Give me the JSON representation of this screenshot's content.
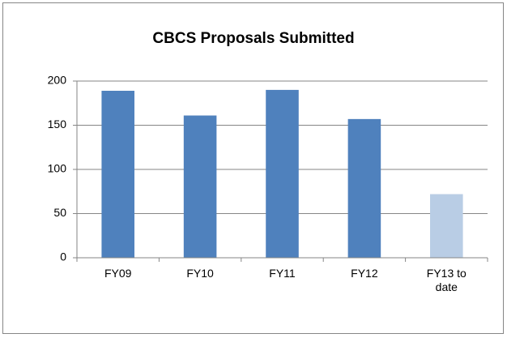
{
  "chart_data": {
    "type": "bar",
    "title": "CBCS Proposals Submitted",
    "categories": [
      "FY09",
      "FY10",
      "FY11",
      "FY12",
      "FY13 to date"
    ],
    "values": [
      189,
      161,
      190,
      157,
      72
    ],
    "colors": [
      "#4f81bd",
      "#4f81bd",
      "#4f81bd",
      "#4f81bd",
      "#b9cde5"
    ],
    "ylim": [
      0,
      200
    ],
    "yticks": [
      0,
      50,
      100,
      150,
      200
    ],
    "grid": true
  }
}
